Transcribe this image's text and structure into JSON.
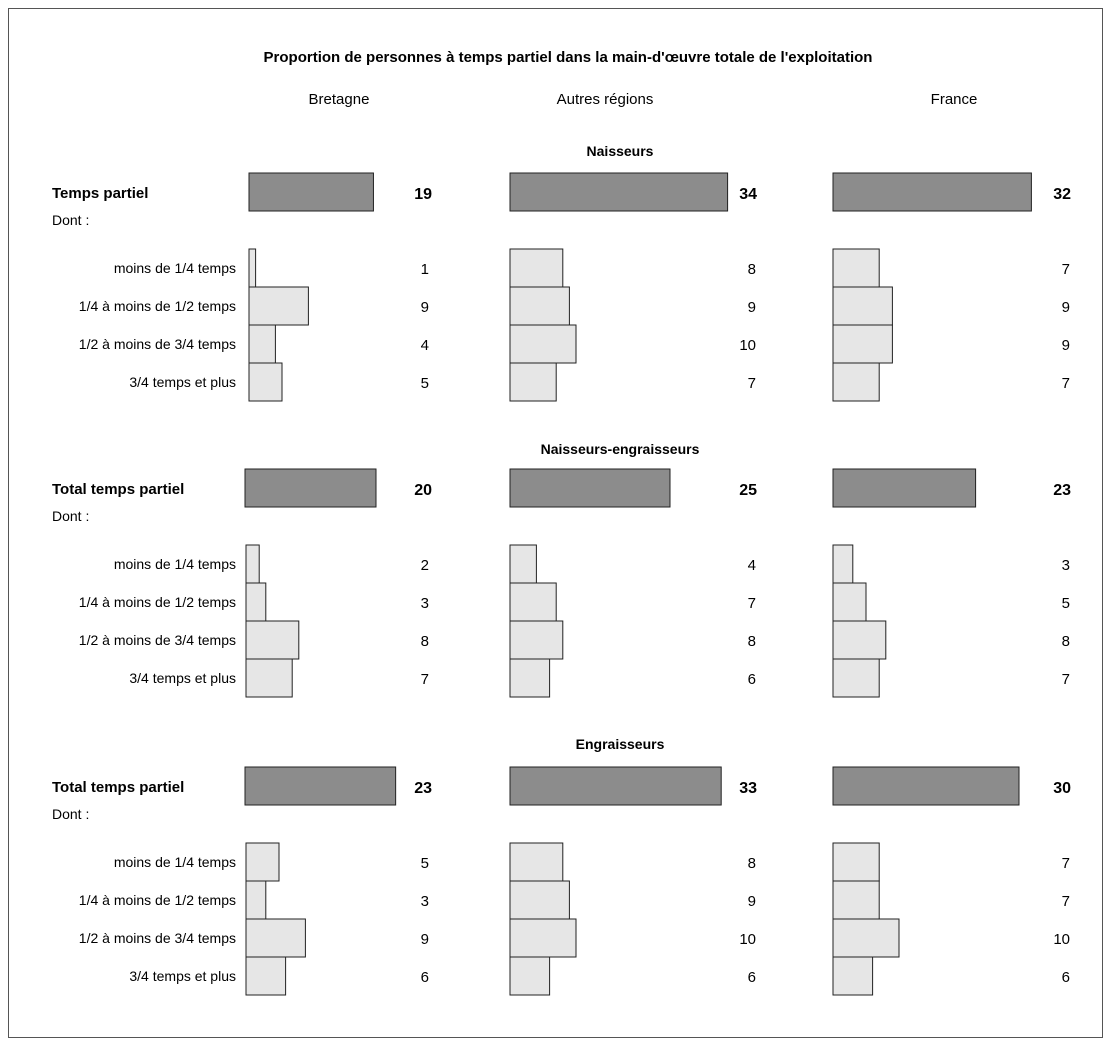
{
  "chart_data": {
    "type": "bar",
    "title": "Proportion de personnes à temps partiel dans la main-d'œuvre totale de l'exploitation",
    "regions": [
      "Bretagne",
      "Autres régions",
      "France"
    ],
    "sub_label": "Dont :",
    "subcategories": [
      "moins de 1/4 temps",
      "1/4 à moins de 1/2 temps",
      "1/2 à moins de 3/4 temps",
      "3/4 temps et plus"
    ],
    "total_color": "#8c8c8c",
    "sub_color": "#e6e6e6",
    "sections": [
      {
        "name": "Naisseurs",
        "total_label": "Temps partiel",
        "totals": [
          19,
          34,
          32
        ],
        "breakdown": [
          [
            1,
            9,
            4,
            5
          ],
          [
            8,
            9,
            10,
            7
          ],
          [
            7,
            9,
            9,
            7
          ]
        ]
      },
      {
        "name": "Naisseurs-engraisseurs",
        "total_label": "Total temps partiel",
        "totals": [
          20,
          25,
          23
        ],
        "breakdown": [
          [
            2,
            3,
            8,
            7
          ],
          [
            4,
            7,
            8,
            6
          ],
          [
            3,
            5,
            8,
            7
          ]
        ]
      },
      {
        "name": "Engraisseurs",
        "total_label": "Total temps partiel",
        "totals": [
          23,
          33,
          30
        ],
        "breakdown": [
          [
            5,
            3,
            9,
            6
          ],
          [
            8,
            9,
            10,
            6
          ],
          [
            7,
            7,
            10,
            6
          ]
        ]
      }
    ]
  }
}
